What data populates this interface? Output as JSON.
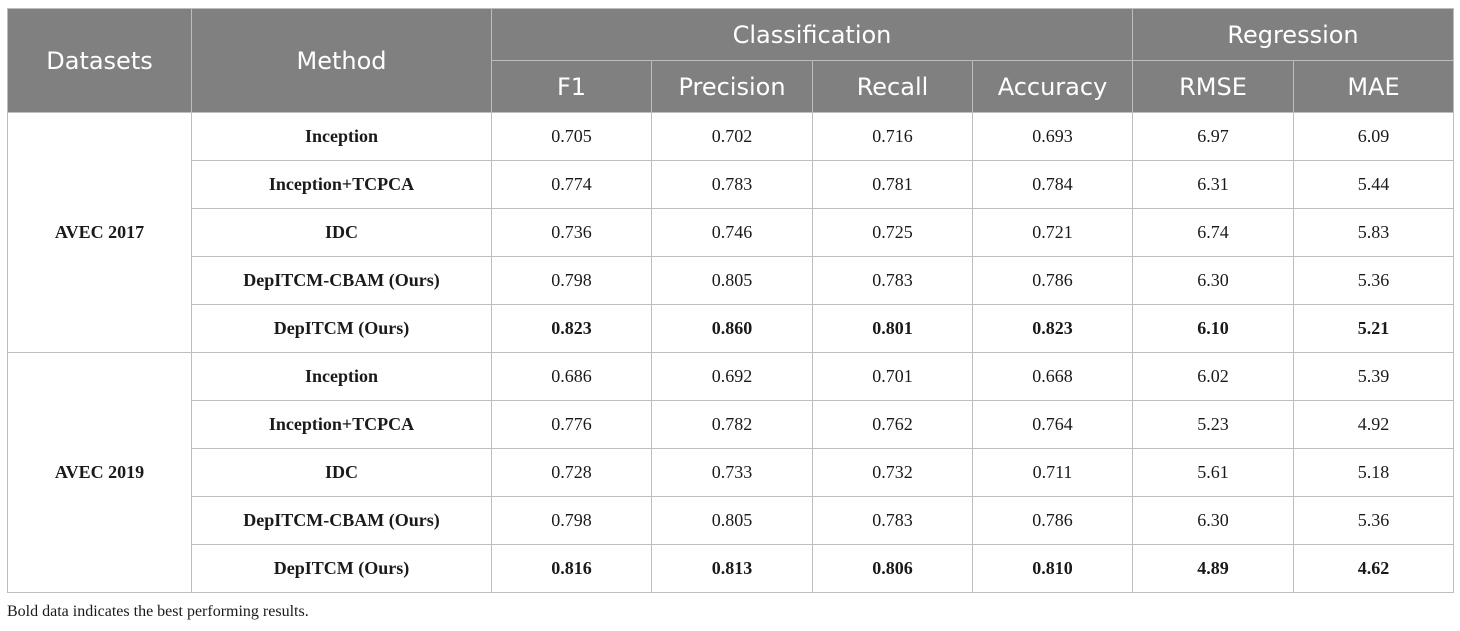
{
  "header": {
    "datasets": "Datasets",
    "method": "Method",
    "classification": "Classification",
    "regression": "Regression",
    "metrics": [
      "F1",
      "Precision",
      "Recall",
      "Accuracy",
      "RMSE",
      "MAE"
    ]
  },
  "groups": [
    {
      "dataset": "AVEC 2017",
      "rows": [
        {
          "method": "Inception",
          "values": [
            "0.705",
            "0.702",
            "0.716",
            "0.693",
            "6.97",
            "6.09"
          ],
          "best": false
        },
        {
          "method": "Inception+TCPCA",
          "values": [
            "0.774",
            "0.783",
            "0.781",
            "0.784",
            "6.31",
            "5.44"
          ],
          "best": false
        },
        {
          "method": "IDC",
          "values": [
            "0.736",
            "0.746",
            "0.725",
            "0.721",
            "6.74",
            "5.83"
          ],
          "best": false
        },
        {
          "method": "DepITCM-CBAM (Ours)",
          "values": [
            "0.798",
            "0.805",
            "0.783",
            "0.786",
            "6.30",
            "5.36"
          ],
          "best": false
        },
        {
          "method": "DepITCM (Ours)",
          "values": [
            "0.823",
            "0.860",
            "0.801",
            "0.823",
            "6.10",
            "5.21"
          ],
          "best": true
        }
      ]
    },
    {
      "dataset": "AVEC 2019",
      "rows": [
        {
          "method": "Inception",
          "values": [
            "0.686",
            "0.692",
            "0.701",
            "0.668",
            "6.02",
            "5.39"
          ],
          "best": false
        },
        {
          "method": "Inception+TCPCA",
          "values": [
            "0.776",
            "0.782",
            "0.762",
            "0.764",
            "5.23",
            "4.92"
          ],
          "best": false
        },
        {
          "method": "IDC",
          "values": [
            "0.728",
            "0.733",
            "0.732",
            "0.711",
            "5.61",
            "5.18"
          ],
          "best": false
        },
        {
          "method": "DepITCM-CBAM (Ours)",
          "values": [
            "0.798",
            "0.805",
            "0.783",
            "0.786",
            "6.30",
            "5.36"
          ],
          "best": false
        },
        {
          "method": "DepITCM (Ours)",
          "values": [
            "0.816",
            "0.813",
            "0.806",
            "0.810",
            "4.89",
            "4.62"
          ],
          "best": true
        }
      ]
    }
  ],
  "footnote": "Bold data indicates the best performing results."
}
